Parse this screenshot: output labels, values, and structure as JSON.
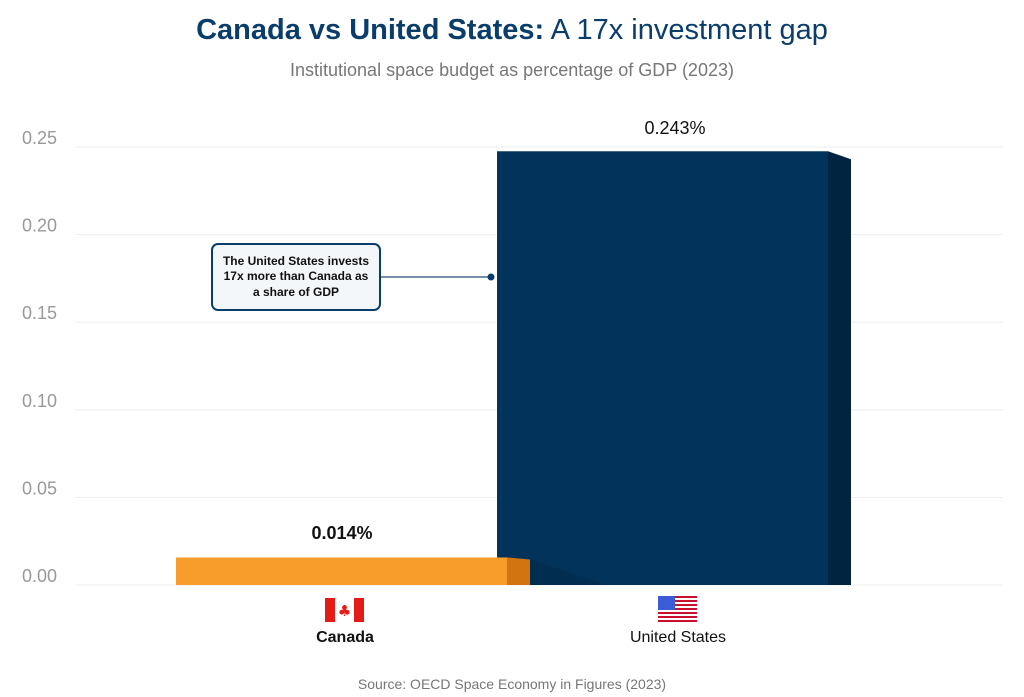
{
  "title": {
    "bold": "Canada vs United States:",
    "rest": "A 17x investment gap"
  },
  "subtitle": "Institutional space budget as percentage of GDP (2023)",
  "source": "Source: OECD Space Economy in Figures (2023)",
  "annotation": "The United States invests 17x more than Canada as a share of GDP",
  "colors": {
    "canada": "#f89c2c",
    "canada_side": "#d27410",
    "us": "#02335a",
    "us_side": "#012541",
    "title": "#0b3d6b"
  },
  "chart_data": {
    "type": "bar",
    "title": "Canada vs United States: A 17x investment gap",
    "subtitle": "Institutional space budget as percentage of GDP (2023)",
    "categories": [
      "Canada",
      "United States"
    ],
    "values": [
      0.014,
      0.243
    ],
    "data_labels": [
      "0.014%",
      "0.243%"
    ],
    "category_icons": [
      "canada-flag",
      "us-flag"
    ],
    "ylim": [
      0,
      0.25
    ],
    "yticks": [
      "0.00",
      "0.05",
      "0.10",
      "0.15",
      "0.20",
      "0.25"
    ],
    "xlabel": "",
    "ylabel": "",
    "grid": true
  }
}
